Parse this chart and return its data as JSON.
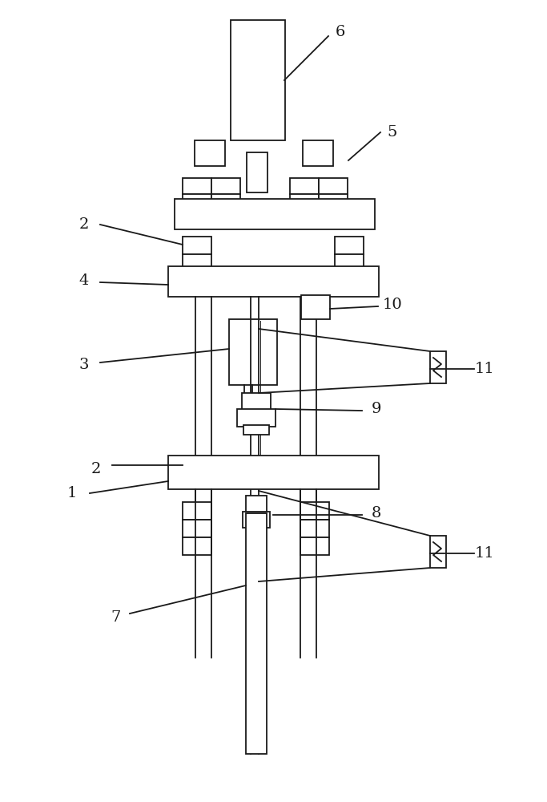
{
  "background_color": "#ffffff",
  "line_color": "#1a1a1a",
  "line_width": 1.3,
  "fig_width": 6.83,
  "fig_height": 10.0
}
